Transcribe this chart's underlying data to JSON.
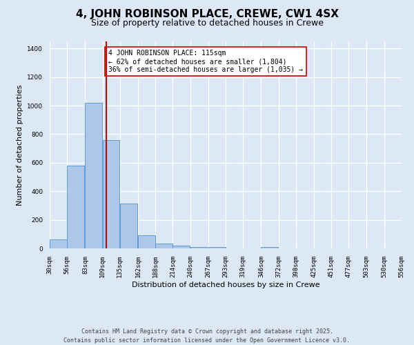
{
  "title": "4, JOHN ROBINSON PLACE, CREWE, CW1 4SX",
  "subtitle": "Size of property relative to detached houses in Crewe",
  "xlabel": "Distribution of detached houses by size in Crewe",
  "ylabel": "Number of detached properties",
  "bins": [
    30,
    56,
    83,
    109,
    135,
    162,
    188,
    214,
    240,
    267,
    293,
    319,
    346,
    372,
    398,
    425,
    451,
    477,
    503,
    530,
    556
  ],
  "values": [
    65,
    580,
    1020,
    760,
    315,
    90,
    35,
    20,
    12,
    8,
    0,
    0,
    12,
    0,
    0,
    0,
    0,
    0,
    0,
    0
  ],
  "bar_color": "#aec6e8",
  "bar_edge_color": "#5a9ed6",
  "property_size": 115,
  "vline_color": "#cc0000",
  "annotation_text": "4 JOHN ROBINSON PLACE: 115sqm\n← 62% of detached houses are smaller (1,804)\n36% of semi-detached houses are larger (1,035) →",
  "annotation_box_color": "#ffffff",
  "annotation_box_edge_color": "#cc0000",
  "ylim": [
    0,
    1450
  ],
  "yticks": [
    0,
    200,
    400,
    600,
    800,
    1000,
    1200,
    1400
  ],
  "bg_color": "#dce8f5",
  "grid_color": "#ffffff",
  "footer_line1": "Contains HM Land Registry data © Crown copyright and database right 2025.",
  "footer_line2": "Contains public sector information licensed under the Open Government Licence v3.0.",
  "title_fontsize": 11,
  "subtitle_fontsize": 9,
  "annotation_fontsize": 7,
  "tick_fontsize": 6.5,
  "ylabel_fontsize": 8,
  "xlabel_fontsize": 8,
  "footer_fontsize": 6
}
